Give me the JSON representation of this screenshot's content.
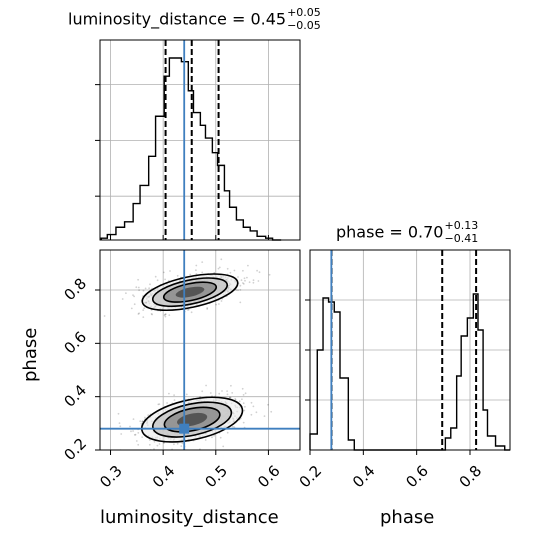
{
  "chart_data": {
    "type": "corner",
    "parameters": [
      "luminosity_distance",
      "phase"
    ],
    "truths": {
      "luminosity_distance": 0.44,
      "phase": 0.28
    },
    "truth_color": "#3f7fbf",
    "titles": {
      "luminosity_distance": {
        "text": "luminosity_distance = 0.45",
        "plus": "+0.05",
        "minus": "−0.05"
      },
      "phase": {
        "text": "phase = 0.70",
        "plus": "+0.13",
        "minus": "−0.41"
      }
    },
    "xlabels": {
      "luminosity_distance": "luminosity_distance",
      "phase": "phase"
    },
    "ylabels": {
      "phase": "phase"
    },
    "luminosity_distance_hist": {
      "range": [
        0.28,
        0.66
      ],
      "bin_edges": [
        0.2824,
        0.2939,
        0.3103,
        0.3267,
        0.343,
        0.3561,
        0.3725,
        0.3856,
        0.402,
        0.4118,
        0.4249,
        0.4347,
        0.4478,
        0.4576,
        0.4707,
        0.4804,
        0.4935,
        0.5033,
        0.5164,
        0.5262,
        0.5392,
        0.5523,
        0.5654,
        0.5785,
        0.5948,
        0.6079,
        0.6242
      ],
      "counts": [
        0.01,
        0.03,
        0.07,
        0.1,
        0.2,
        0.3,
        0.46,
        0.68,
        0.9,
        1.0,
        1.0,
        0.98,
        0.82,
        0.7,
        0.63,
        0.56,
        0.48,
        0.41,
        0.27,
        0.18,
        0.11,
        0.07,
        0.05,
        0.02,
        0.01,
        0.0
      ],
      "quantiles": [
        0.4046,
        0.4543,
        0.5053
      ],
      "xticks": [
        0.3,
        0.4,
        0.5,
        0.6
      ]
    },
    "phase_hist": {
      "range": [
        0.2,
        0.95
      ],
      "bin_edges": [
        0.2,
        0.2273,
        0.2489,
        0.2697,
        0.291,
        0.3125,
        0.3437,
        0.3661,
        0.3929,
        0.7076,
        0.7279,
        0.75,
        0.7669,
        0.7901,
        0.8125,
        0.83,
        0.8491,
        0.8656,
        0.8958,
        0.9302,
        0.95
      ],
      "counts": [
        0.08,
        0.5,
        0.76,
        0.74,
        0.69,
        0.36,
        0.05,
        0.0,
        0.0,
        0.06,
        0.11,
        0.37,
        0.57,
        0.66,
        0.78,
        0.6,
        0.2,
        0.07,
        0.02,
        0.0
      ],
      "quantiles": [
        0.2806,
        0.6958,
        0.8229
      ],
      "xticks": [
        0.2,
        0.4,
        0.6,
        0.8
      ]
    },
    "joint": {
      "xlim": [
        0.28,
        0.66
      ],
      "ylim": [
        0.2,
        0.95
      ],
      "xticks": [
        0.3,
        0.4,
        0.5,
        0.6
      ],
      "yticks": [
        0.2,
        0.4,
        0.6,
        0.8
      ],
      "modes": [
        {
          "center": [
            0.451,
            0.792
          ],
          "width": 0.185,
          "height": 0.115,
          "tilt_deg": -12
        },
        {
          "center": [
            0.455,
            0.314
          ],
          "width": 0.195,
          "height": 0.15,
          "tilt_deg": -12
        }
      ],
      "contour_levels": [
        0.5,
        1.0,
        1.5
      ]
    }
  }
}
